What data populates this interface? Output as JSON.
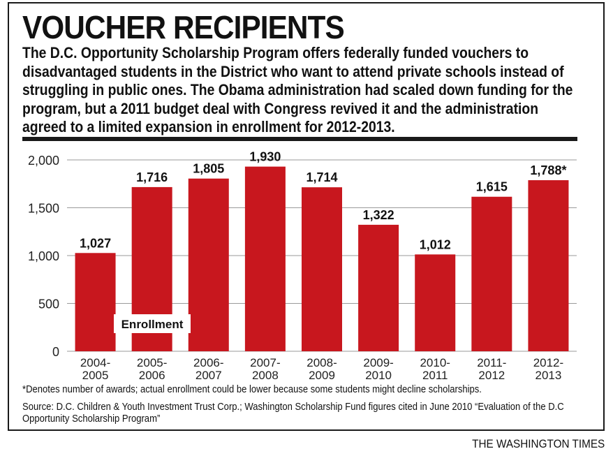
{
  "header": {
    "title": "VOUCHER RECIPIENTS",
    "dek": "The D.C. Opportunity Scholarship Program offers federally funded vouchers to disadvantaged students in the District who want to attend private schools instead of struggling in public ones. The Obama administration had scaled down funding for the program, but a 2011 budget deal with Congress revived it and the administration agreed to a limited expansion in enrollment for 2012-2013."
  },
  "chart_data": {
    "type": "bar",
    "categories": [
      [
        "2004-",
        "2005"
      ],
      [
        "2005-",
        "2006"
      ],
      [
        "2006-",
        "2007"
      ],
      [
        "2007-",
        "2008"
      ],
      [
        "2008-",
        "2009"
      ],
      [
        "2009-",
        "2010"
      ],
      [
        "2010-",
        "2011"
      ],
      [
        "2011-",
        "2012"
      ],
      [
        "2012-",
        "2013"
      ]
    ],
    "series": [
      {
        "name": "Enrollment",
        "values": [
          1027,
          1716,
          1805,
          1930,
          1714,
          1322,
          1012,
          1615,
          1788
        ]
      }
    ],
    "data_labels": [
      "1,027",
      "1,716",
      "1,805",
      "1,930",
      "1,714",
      "1,322",
      "1,012",
      "1,615",
      "1,788*"
    ],
    "yticks": [
      0,
      500,
      1000,
      1500,
      2000
    ],
    "ytick_labels": [
      "0",
      "500",
      "1,000",
      "1,500",
      "2,000"
    ],
    "ylim": [
      0,
      2000
    ],
    "grid": true,
    "legend": "inside-bottom-left",
    "bar_color": "#c8171e"
  },
  "footer": {
    "footnote": "*Denotes number of awards; actual enrollment could be lower because some students might decline scholarships.",
    "source": "Source: D.C. Children & Youth Investment Trust Corp.; Washington Scholarship Fund figures cited in June 2010 “Evaluation of the D.C Opportunity Scholarship Program”",
    "credit": "THE WASHINGTON TIMES"
  }
}
